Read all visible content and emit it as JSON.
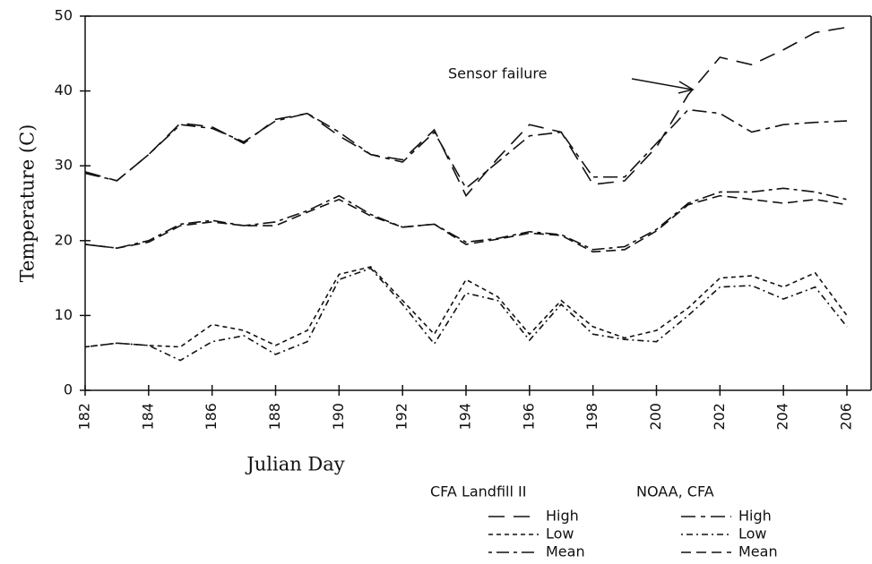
{
  "chart_data": {
    "type": "line",
    "xlabel": "Julian Day",
    "ylabel": "Temperature (C)",
    "annotation": "Sensor failure",
    "legend_groups": [
      "CFA Landfill II",
      "NOAA, CFA"
    ],
    "x": [
      182,
      183,
      184,
      185,
      186,
      187,
      188,
      189,
      190,
      191,
      192,
      193,
      194,
      195,
      196,
      197,
      198,
      199,
      200,
      201,
      202,
      203,
      204,
      205,
      206
    ],
    "xlim": [
      182,
      206
    ],
    "xticks": [
      182,
      184,
      186,
      188,
      190,
      192,
      194,
      196,
      198,
      200,
      202,
      204,
      206
    ],
    "ylim": [
      0,
      50
    ],
    "yticks": [
      0,
      10,
      20,
      30,
      40,
      50
    ],
    "series": [
      {
        "name": "High",
        "group": 0,
        "color": "#111111",
        "dash": "18,10",
        "values": [
          29.2,
          28,
          31.5,
          35.7,
          35.2,
          33,
          36.2,
          37,
          34,
          31.5,
          30.8,
          34.8,
          26,
          31,
          35.5,
          34.5,
          27.5,
          28,
          32.5,
          39.5,
          44.5,
          43.5,
          45.5,
          47.8,
          48.5
        ]
      },
      {
        "name": "Low",
        "group": 0,
        "color": "#111111",
        "dash": "5,4",
        "values": [
          5.8,
          6.3,
          6,
          5.8,
          8.8,
          8,
          6,
          8,
          15.5,
          16.5,
          12,
          7.5,
          14.8,
          12.5,
          7.5,
          12,
          8.5,
          7,
          8,
          11,
          15,
          15.3,
          13.8,
          15.7,
          10
        ]
      },
      {
        "name": "Mean",
        "group": 0,
        "color": "#111111",
        "dash": "4,5,14,5",
        "values": [
          19.5,
          19,
          20,
          22.2,
          22.7,
          22,
          22.5,
          24,
          26,
          23.5,
          21.8,
          22.2,
          19.8,
          20.3,
          21.2,
          20.8,
          18.8,
          19.2,
          21.5,
          25,
          26.5,
          26.5,
          27,
          26.5,
          25.5
        ]
      },
      {
        "name": "High",
        "group": 1,
        "color": "#111111",
        "dash": "16,6,5,6",
        "values": [
          29,
          28,
          31.5,
          35.5,
          35,
          33.2,
          36,
          37,
          34.5,
          31.5,
          30.5,
          34.5,
          27,
          30.5,
          34,
          34.5,
          28.5,
          28.5,
          33,
          37.5,
          37,
          34.5,
          35.5,
          35.8,
          36
        ]
      },
      {
        "name": "Low",
        "group": 1,
        "color": "#111111",
        "dash": "2,4,7,4",
        "values": [
          5.8,
          6.3,
          6,
          4,
          6.5,
          7.3,
          4.8,
          6.5,
          14.8,
          16.3,
          11.5,
          6.2,
          13,
          12,
          6.7,
          11.5,
          7.5,
          6.8,
          6.5,
          10,
          13.8,
          14,
          12.2,
          13.8,
          8.5
        ]
      },
      {
        "name": "Mean",
        "group": 1,
        "color": "#111111",
        "dash": "11,6",
        "values": [
          19.5,
          19,
          19.8,
          22,
          22.5,
          22,
          22,
          23.8,
          25.5,
          23.3,
          21.8,
          22.2,
          19.5,
          20.2,
          21,
          20.7,
          18.5,
          18.8,
          21.3,
          24.8,
          26,
          25.5,
          25,
          25.5,
          24.8
        ]
      }
    ]
  }
}
